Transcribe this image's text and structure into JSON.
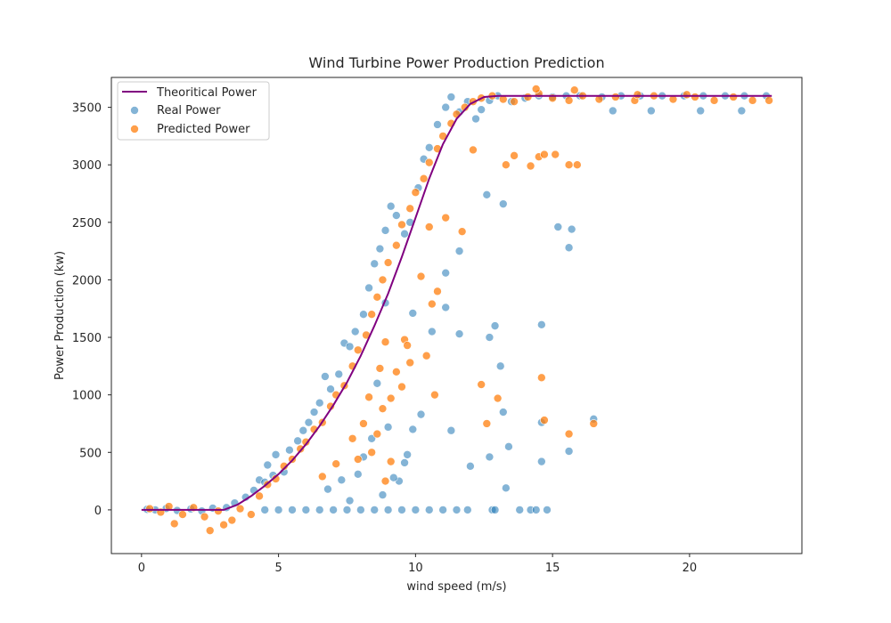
{
  "chart_data": {
    "type": "scatter",
    "title": "Wind Turbine Power Production Prediction",
    "xlabel": "wind speed (m/s)",
    "ylabel": "Power Production (kw)",
    "xlim": [
      -1.1,
      24.1
    ],
    "ylim": [
      -380,
      3760
    ],
    "xticks": [
      0,
      5,
      10,
      15,
      20
    ],
    "yticks": [
      0,
      500,
      1000,
      1500,
      2000,
      2500,
      3000,
      3500
    ],
    "legend_position": "top-left",
    "grid": false,
    "series": [
      {
        "name": "Theoritical Power",
        "kind": "line",
        "color": "#800080",
        "x": [
          0,
          1,
          2,
          3,
          3.5,
          4,
          4.5,
          5,
          5.5,
          6,
          6.5,
          7,
          7.5,
          8,
          8.5,
          9,
          9.5,
          10,
          10.5,
          11,
          11.5,
          12,
          12.5,
          13,
          14,
          16,
          18,
          20,
          22,
          23
        ],
        "y": [
          0,
          0,
          0,
          0,
          45,
          120,
          210,
          310,
          430,
          570,
          730,
          910,
          1110,
          1340,
          1600,
          1880,
          2200,
          2540,
          2880,
          3180,
          3400,
          3530,
          3590,
          3600,
          3600,
          3600,
          3600,
          3600,
          3600,
          3600
        ]
      },
      {
        "name": "Real Power",
        "kind": "scatter",
        "color": "#1f77b4",
        "points": [
          [
            0.2,
            5
          ],
          [
            0.5,
            0
          ],
          [
            0.9,
            12
          ],
          [
            1.3,
            -5
          ],
          [
            1.8,
            8
          ],
          [
            2.2,
            -10
          ],
          [
            2.6,
            15
          ],
          [
            3.1,
            20
          ],
          [
            3.4,
            60
          ],
          [
            3.8,
            110
          ],
          [
            4.1,
            170
          ],
          [
            4.3,
            260
          ],
          [
            4.5,
            240
          ],
          [
            4.6,
            390
          ],
          [
            4.8,
            300
          ],
          [
            4.9,
            480
          ],
          [
            5.2,
            330
          ],
          [
            5.4,
            520
          ],
          [
            5.7,
            600
          ],
          [
            5.9,
            690
          ],
          [
            6.1,
            760
          ],
          [
            6.3,
            850
          ],
          [
            6.5,
            930
          ],
          [
            6.7,
            1160
          ],
          [
            6.9,
            1050
          ],
          [
            7.2,
            1180
          ],
          [
            7.4,
            1450
          ],
          [
            7.6,
            1420
          ],
          [
            7.8,
            1550
          ],
          [
            8.1,
            1700
          ],
          [
            8.3,
            1930
          ],
          [
            8.5,
            2140
          ],
          [
            8.7,
            2270
          ],
          [
            8.9,
            2430
          ],
          [
            9.1,
            2640
          ],
          [
            9.3,
            2560
          ],
          [
            9.6,
            2400
          ],
          [
            9.8,
            2500
          ],
          [
            10.1,
            2800
          ],
          [
            10.3,
            3050
          ],
          [
            10.5,
            3150
          ],
          [
            10.8,
            3350
          ],
          [
            11.1,
            3500
          ],
          [
            11.3,
            3590
          ],
          [
            11.6,
            3460
          ],
          [
            11.9,
            3550
          ],
          [
            12.2,
            3400
          ],
          [
            12.4,
            3480
          ],
          [
            12.7,
            3560
          ],
          [
            13.0,
            3600
          ],
          [
            13.5,
            3550
          ],
          [
            14.0,
            3580
          ],
          [
            14.5,
            3600
          ],
          [
            15.0,
            3590
          ],
          [
            15.5,
            3600
          ],
          [
            16.0,
            3600
          ],
          [
            16.8,
            3590
          ],
          [
            17.5,
            3600
          ],
          [
            18.2,
            3600
          ],
          [
            19.0,
            3600
          ],
          [
            19.8,
            3600
          ],
          [
            20.5,
            3600
          ],
          [
            21.3,
            3600
          ],
          [
            22.0,
            3600
          ],
          [
            22.8,
            3600
          ],
          [
            17.2,
            3470
          ],
          [
            18.6,
            3470
          ],
          [
            20.4,
            3470
          ],
          [
            21.9,
            3470
          ],
          [
            12.9,
            1600
          ],
          [
            13.1,
            1250
          ],
          [
            14.6,
            1610
          ],
          [
            15.6,
            2280
          ],
          [
            15.7,
            2440
          ],
          [
            15.2,
            2460
          ],
          [
            13.2,
            2660
          ],
          [
            12.6,
            2740
          ],
          [
            14.6,
            760
          ],
          [
            14.6,
            420
          ],
          [
            15.6,
            510
          ],
          [
            16.5,
            790
          ],
          [
            11.6,
            2250
          ],
          [
            11.1,
            2060
          ],
          [
            11.6,
            1530
          ],
          [
            12.7,
            1500
          ],
          [
            11.1,
            1760
          ],
          [
            11.3,
            690
          ],
          [
            12.0,
            380
          ],
          [
            12.7,
            460
          ],
          [
            13.3,
            190
          ],
          [
            13.4,
            550
          ],
          [
            13.2,
            850
          ],
          [
            9.9,
            700
          ],
          [
            9.6,
            410
          ],
          [
            10.2,
            830
          ],
          [
            9.7,
            480
          ],
          [
            9.4,
            250
          ],
          [
            8.4,
            620
          ],
          [
            8.1,
            460
          ],
          [
            7.9,
            310
          ],
          [
            7.3,
            260
          ],
          [
            6.8,
            180
          ],
          [
            7.6,
            80
          ],
          [
            8.8,
            130
          ],
          [
            9.0,
            720
          ],
          [
            9.2,
            280
          ],
          [
            10.6,
            1550
          ],
          [
            9.9,
            1710
          ],
          [
            8.6,
            1100
          ],
          [
            8.9,
            1800
          ],
          [
            4.5,
            0
          ],
          [
            5.5,
            0
          ],
          [
            6.5,
            0
          ],
          [
            7.5,
            0
          ],
          [
            8.5,
            0
          ],
          [
            9.5,
            0
          ],
          [
            10.5,
            0
          ],
          [
            11.5,
            0
          ],
          [
            11.9,
            0
          ],
          [
            12.8,
            0
          ],
          [
            12.9,
            0
          ],
          [
            13.8,
            0
          ],
          [
            14.2,
            0
          ],
          [
            14.4,
            0
          ],
          [
            14.8,
            0
          ],
          [
            5.0,
            0
          ],
          [
            6.0,
            0
          ],
          [
            7.0,
            0
          ],
          [
            8.0,
            0
          ],
          [
            9.0,
            0
          ],
          [
            10.0,
            0
          ],
          [
            11.0,
            0
          ]
        ]
      },
      {
        "name": "Predicted Power",
        "kind": "scatter",
        "color": "#ff7f0e",
        "points": [
          [
            0.3,
            10
          ],
          [
            0.7,
            -20
          ],
          [
            1.0,
            30
          ],
          [
            1.2,
            -120
          ],
          [
            1.5,
            -40
          ],
          [
            1.9,
            20
          ],
          [
            2.3,
            -60
          ],
          [
            2.5,
            -180
          ],
          [
            2.8,
            -10
          ],
          [
            3.0,
            -130
          ],
          [
            3.3,
            -90
          ],
          [
            3.6,
            10
          ],
          [
            4.0,
            -40
          ],
          [
            4.3,
            120
          ],
          [
            4.6,
            220
          ],
          [
            4.9,
            270
          ],
          [
            5.2,
            380
          ],
          [
            5.5,
            440
          ],
          [
            5.8,
            530
          ],
          [
            6.0,
            590
          ],
          [
            6.3,
            700
          ],
          [
            6.6,
            760
          ],
          [
            6.9,
            900
          ],
          [
            7.1,
            1000
          ],
          [
            7.4,
            1080
          ],
          [
            7.7,
            1250
          ],
          [
            7.9,
            1390
          ],
          [
            8.2,
            1520
          ],
          [
            8.4,
            1700
          ],
          [
            8.6,
            1850
          ],
          [
            8.8,
            2000
          ],
          [
            9.0,
            2150
          ],
          [
            9.3,
            2300
          ],
          [
            9.5,
            2480
          ],
          [
            9.8,
            2620
          ],
          [
            10.0,
            2760
          ],
          [
            10.3,
            2880
          ],
          [
            10.5,
            3020
          ],
          [
            10.8,
            3140
          ],
          [
            11.0,
            3250
          ],
          [
            11.3,
            3360
          ],
          [
            11.5,
            3440
          ],
          [
            11.8,
            3500
          ],
          [
            12.1,
            3550
          ],
          [
            12.4,
            3580
          ],
          [
            12.8,
            3600
          ],
          [
            13.2,
            3570
          ],
          [
            13.6,
            3550
          ],
          [
            14.1,
            3590
          ],
          [
            14.5,
            3620
          ],
          [
            15.0,
            3580
          ],
          [
            15.6,
            3560
          ],
          [
            16.1,
            3600
          ],
          [
            16.7,
            3570
          ],
          [
            17.3,
            3590
          ],
          [
            18.0,
            3560
          ],
          [
            18.7,
            3600
          ],
          [
            19.4,
            3570
          ],
          [
            20.2,
            3590
          ],
          [
            20.9,
            3560
          ],
          [
            21.6,
            3590
          ],
          [
            22.3,
            3560
          ],
          [
            22.9,
            3560
          ],
          [
            14.4,
            3660
          ],
          [
            15.8,
            3650
          ],
          [
            18.1,
            3610
          ],
          [
            19.9,
            3610
          ],
          [
            13.6,
            3080
          ],
          [
            14.5,
            3070
          ],
          [
            14.7,
            3090
          ],
          [
            15.1,
            3090
          ],
          [
            15.6,
            3000
          ],
          [
            15.9,
            3000
          ],
          [
            13.3,
            3000
          ],
          [
            14.2,
            2990
          ],
          [
            12.1,
            3130
          ],
          [
            11.1,
            2540
          ],
          [
            11.7,
            2420
          ],
          [
            10.5,
            2460
          ],
          [
            10.2,
            2030
          ],
          [
            10.8,
            1900
          ],
          [
            10.6,
            1790
          ],
          [
            9.6,
            1480
          ],
          [
            9.3,
            1200
          ],
          [
            8.9,
            1460
          ],
          [
            9.8,
            1280
          ],
          [
            8.3,
            980
          ],
          [
            9.1,
            970
          ],
          [
            8.8,
            880
          ],
          [
            8.6,
            660
          ],
          [
            8.1,
            750
          ],
          [
            7.7,
            620
          ],
          [
            8.4,
            500
          ],
          [
            9.1,
            420
          ],
          [
            7.1,
            400
          ],
          [
            6.6,
            290
          ],
          [
            10.7,
            1000
          ],
          [
            12.4,
            1090
          ],
          [
            12.6,
            750
          ],
          [
            13.0,
            970
          ],
          [
            14.6,
            1150
          ],
          [
            14.7,
            780
          ],
          [
            15.6,
            660
          ],
          [
            16.5,
            750
          ],
          [
            9.7,
            1430
          ],
          [
            9.5,
            1070
          ],
          [
            7.9,
            440
          ],
          [
            8.9,
            250
          ],
          [
            10.4,
            1340
          ],
          [
            8.7,
            1230
          ]
        ]
      }
    ]
  }
}
